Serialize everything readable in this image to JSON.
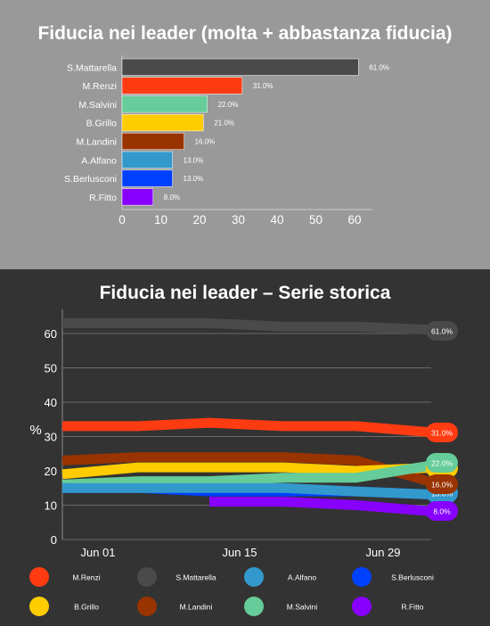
{
  "chart_data": [
    {
      "type": "bar",
      "orientation": "horizontal",
      "title": "Fiducia nei leader (molta + abbastanza fiducia)",
      "categories": [
        "S.Mattarella",
        "M.Renzi",
        "M.Salvini",
        "B.Grillo",
        "M.Landini",
        "A.Alfano",
        "S.Berlusconi",
        "R.Fitto"
      ],
      "values": [
        61,
        31,
        22,
        21,
        16,
        13,
        13,
        8
      ],
      "value_labels": [
        "61.0%",
        "31.0%",
        "22.0%",
        "21.0%",
        "16.0%",
        "13.0%",
        "13.0%",
        "8.0%"
      ],
      "colors": [
        "#4a4a4a",
        "#ff3b12",
        "#66cc99",
        "#ffcc00",
        "#993300",
        "#3399cc",
        "#0040ff",
        "#8800ff"
      ],
      "xlim": [
        0,
        65
      ],
      "xticks": [
        0,
        10,
        20,
        30,
        40,
        50,
        60
      ],
      "xtick_labels": [
        "0",
        "10",
        "20",
        "30",
        "40",
        "50",
        "60"
      ],
      "grid": false
    },
    {
      "type": "line",
      "title": "Fiducia nei leader – Serie storica",
      "ylabel": "%",
      "ylim": [
        0,
        65
      ],
      "yticks": [
        0,
        10,
        20,
        30,
        40,
        50,
        60
      ],
      "ytick_labels": [
        "0",
        "10",
        "20",
        "30",
        "40",
        "50",
        "60"
      ],
      "x": [
        "May 30",
        "Jun 06",
        "Jun 13",
        "Jun 20",
        "Jun 27",
        "Jul 02"
      ],
      "xticks": [
        "Jun 01",
        "Jun 15",
        "Jun 29"
      ],
      "grid": true,
      "series": [
        {
          "name": "S.Mattarella",
          "color": "#4a4a4a",
          "values": [
            63,
            63,
            63,
            62,
            62,
            61
          ],
          "end_label": "61.0%"
        },
        {
          "name": "M.Renzi",
          "color": "#ff3b12",
          "values": [
            33,
            33,
            34,
            33,
            33,
            31
          ],
          "end_label": "31.0%"
        },
        {
          "name": "M.Salvini",
          "color": "#66cc99",
          "values": [
            16,
            17,
            17,
            18,
            18,
            22
          ],
          "end_label": "22.0%"
        },
        {
          "name": "B.Grillo",
          "color": "#ffcc00",
          "values": [
            19,
            21,
            21,
            21,
            20,
            21
          ],
          "end_label": "21.0%"
        },
        {
          "name": "M.Landini",
          "color": "#993300",
          "values": [
            23,
            24,
            24,
            24,
            23,
            16
          ],
          "end_label": "16.0%"
        },
        {
          "name": "A.Alfano",
          "color": "#3399cc",
          "values": [
            15,
            15,
            15,
            15,
            14,
            13
          ],
          "end_label": "13.0%"
        },
        {
          "name": "S.Berlusconi",
          "color": "#0040ff",
          "values": [
            15,
            15,
            14,
            14,
            14,
            13
          ],
          "end_label": "13.0%"
        },
        {
          "name": "R.Fitto",
          "color": "#8800ff",
          "values": [
            null,
            null,
            11,
            11,
            10,
            8
          ],
          "end_label": "8.0%"
        }
      ],
      "legend": {
        "placement": "bottom",
        "items": [
          {
            "name": "M.Renzi",
            "color": "#ff3b12"
          },
          {
            "name": "S.Mattarella",
            "color": "#4a4a4a"
          },
          {
            "name": "A.Alfano",
            "color": "#3399cc"
          },
          {
            "name": "S.Berlusconi",
            "color": "#0040ff"
          },
          {
            "name": "B.Grillo",
            "color": "#ffcc00"
          },
          {
            "name": "M.Landini",
            "color": "#993300"
          },
          {
            "name": "M.Salvini",
            "color": "#66cc99"
          },
          {
            "name": "R.Fitto",
            "color": "#8800ff"
          }
        ]
      }
    }
  ]
}
